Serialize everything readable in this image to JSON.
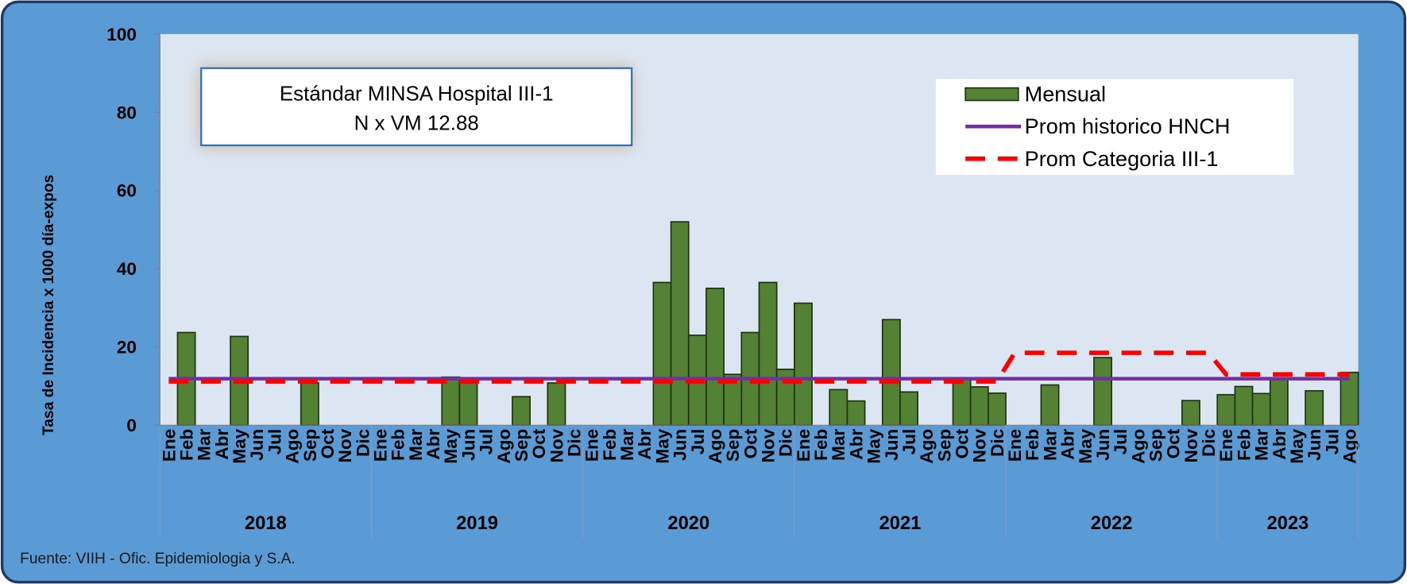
{
  "chart_data": {
    "type": "bar",
    "y_label": "Tasa de Incidencia x 1000 día-expos",
    "annotation": [
      "Estándar MINSA Hospital III-1",
      "N x VM 12.88"
    ],
    "source": "Fuente: VIIH - Ofic. Epidemiologia y S.A.",
    "categories": [
      "Ene",
      "Feb",
      "Mar",
      "Abr",
      "May",
      "Jun",
      "Jul",
      "Ago",
      "Sep",
      "Oct",
      "Nov",
      "Dic",
      "Ene",
      "Feb",
      "Mar",
      "Abr",
      "May",
      "Jun",
      "Jul",
      "Ago",
      "Sep",
      "Oct",
      "Nov",
      "Dic",
      "Ene",
      "Feb",
      "Mar",
      "Abr",
      "May",
      "Jun",
      "Jul",
      "Ago",
      "Sep",
      "Oct",
      "Nov",
      "Dic",
      "Ene",
      "Feb",
      "Mar",
      "Abr",
      "May",
      "Jun",
      "Jul",
      "Ago",
      "Sep",
      "Oct",
      "Nov",
      "Dic",
      "Ene",
      "Feb",
      "Mar",
      "Abr",
      "May",
      "Jun",
      "Jul",
      "Ago",
      "Sep",
      "Oct",
      "Nov",
      "Dic",
      "Ene",
      "Feb",
      "Mar",
      "Abr",
      "May",
      "Jun",
      "Jul",
      "Ago"
    ],
    "years": [
      "2018",
      "2019",
      "2020",
      "2021",
      "2022",
      "2023"
    ],
    "ylim": [
      0,
      100
    ],
    "yticks": [
      0,
      20,
      40,
      60,
      80,
      100
    ],
    "legend": "upper right",
    "series": [
      {
        "name": "Mensual",
        "kind": "bar",
        "color": "#548235",
        "values": [
          0,
          23.7,
          0,
          0,
          22.7,
          0,
          0,
          0,
          10.8,
          0,
          0,
          0,
          0,
          0,
          0,
          0,
          12.3,
          11.8,
          0,
          0,
          7.3,
          0,
          10.8,
          0,
          0,
          0,
          0,
          0,
          36.5,
          52,
          23,
          35,
          13,
          23.7,
          36.5,
          14.3,
          31.2,
          0,
          9.1,
          6.2,
          0,
          27,
          8.5,
          0,
          0,
          12,
          9.8,
          8.2,
          0,
          0,
          10.3,
          0,
          0,
          17.3,
          0,
          0,
          0,
          0,
          6.3,
          0,
          7.8,
          9.9,
          8.1,
          11.9,
          0,
          8.8,
          0,
          13.5
        ]
      },
      {
        "name": "Prom historico HNCH",
        "kind": "line",
        "dashed": false,
        "color": "#7030a0",
        "values": [
          11.9,
          11.9,
          11.9,
          11.9,
          11.9,
          11.9,
          11.9,
          11.9,
          11.9,
          11.9,
          11.9,
          11.9,
          11.9,
          11.9,
          11.9,
          11.9,
          11.9,
          11.9,
          11.9,
          11.9,
          11.9,
          11.9,
          11.9,
          11.9,
          11.9,
          11.9,
          11.9,
          11.9,
          11.9,
          11.9,
          11.9,
          11.9,
          11.9,
          11.9,
          11.9,
          11.9,
          11.9,
          11.9,
          11.9,
          11.9,
          11.9,
          11.9,
          11.9,
          11.9,
          11.9,
          11.9,
          11.9,
          11.9,
          11.9,
          11.9,
          11.9,
          11.9,
          11.9,
          11.9,
          11.9,
          11.9,
          11.9,
          11.9,
          11.9,
          11.9,
          11.9,
          11.9,
          11.9,
          11.9,
          11.9,
          11.9,
          11.9,
          11.9
        ]
      },
      {
        "name": "Prom Categoria III-1",
        "kind": "line",
        "dashed": true,
        "color": "#ff0000",
        "values": [
          11.2,
          11.2,
          11.2,
          11.2,
          11.2,
          11.2,
          11.2,
          11.2,
          11.2,
          11.2,
          11.2,
          11.2,
          11.2,
          11.2,
          11.2,
          11.2,
          11.2,
          11.2,
          11.2,
          11.2,
          11.2,
          11.2,
          11.2,
          11.2,
          11.2,
          11.2,
          11.2,
          11.2,
          11.2,
          11.2,
          11.2,
          11.2,
          11.2,
          11.2,
          11.2,
          11.2,
          11.2,
          11.2,
          11.2,
          11.2,
          11.2,
          11.2,
          11.2,
          11.2,
          11.2,
          11.2,
          11.2,
          11.2,
          18.5,
          18.5,
          18.5,
          18.5,
          18.5,
          18.5,
          18.5,
          18.5,
          18.5,
          18.5,
          18.5,
          18.5,
          13,
          13,
          13,
          13,
          13,
          13,
          13,
          13
        ]
      }
    ]
  }
}
